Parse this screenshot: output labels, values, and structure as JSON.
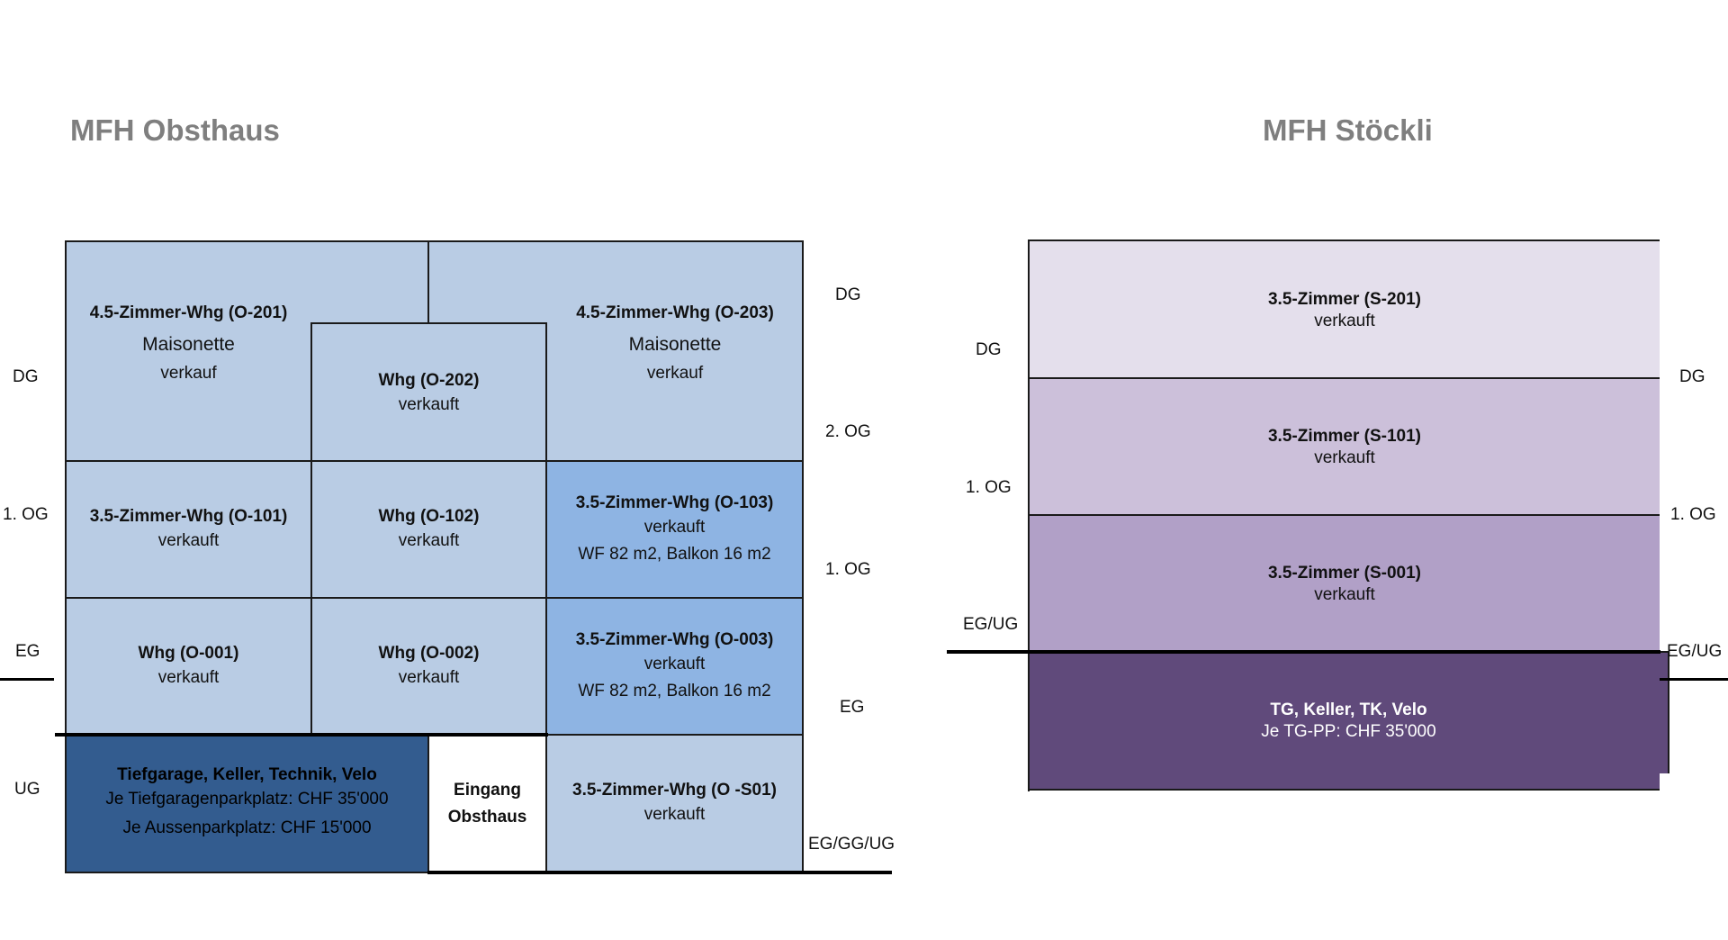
{
  "obsthaus": {
    "title": "MFH Obsthaus",
    "left_floors": {
      "dg": "DG",
      "og1": "1. OG",
      "eg": "EG",
      "ug": "UG"
    },
    "right_floors": {
      "dg": "DG",
      "og2": "2. OG",
      "og1": "1. OG",
      "eg": "EG",
      "egggug": "EG/GG/UG"
    },
    "units": {
      "o201": {
        "name": "4.5-Zimmer-Whg (O-201)",
        "type": "Maisonette",
        "status": "verkauf"
      },
      "o202": {
        "name": "Whg (O-202)",
        "status": "verkauft"
      },
      "o203": {
        "name": "4.5-Zimmer-Whg (O-203)",
        "type": "Maisonette",
        "status": "verkauf"
      },
      "o101": {
        "name": "3.5-Zimmer-Whg (O-101)",
        "status": "verkauft"
      },
      "o102": {
        "name": "Whg (O-102)",
        "status": "verkauft"
      },
      "o103": {
        "name": "3.5-Zimmer-Whg (O-103)",
        "status": "verkauft",
        "area": "WF 82 m2, Balkon 16 m2"
      },
      "o001": {
        "name": "Whg (O-001)",
        "status": "verkauft"
      },
      "o002": {
        "name": "Whg (O-002)",
        "status": "verkauft"
      },
      "o003": {
        "name": "3.5-Zimmer-Whg (O-003)",
        "status": "verkauft",
        "area": "WF 82 m2, Balkon 16 m2"
      },
      "tg": {
        "name": "Tiefgarage, Keller, Technik, Velo",
        "line1": "Je Tiefgaragenparkplatz:  CHF 35'000",
        "line2": "Je Aussenparkplatz: CHF 15'000"
      },
      "eingang": {
        "line1": "Eingang",
        "line2": "Obsthaus"
      },
      "os01": {
        "name": "3.5-Zimmer-Whg (O -S01)",
        "status": "verkauft"
      }
    },
    "colors": {
      "light": "#b9cce4",
      "mid": "#8eb4e3",
      "dark": "#335c8f"
    }
  },
  "stoeckli": {
    "title": "MFH Stöckli",
    "left_floors": {
      "dg": "DG",
      "og1": "1. OG",
      "egug": "EG/UG"
    },
    "right_floors": {
      "dg": "DG",
      "og1": "1. OG",
      "egug": "EG/UG"
    },
    "units": {
      "s201": {
        "name": "3.5-Zimmer (S-201)",
        "status": "verkauft"
      },
      "s101": {
        "name": "3.5-Zimmer (S-101)",
        "status": "verkauft"
      },
      "s001": {
        "name": "3.5-Zimmer (S-001)",
        "status": "verkauft"
      },
      "tg": {
        "name": "TG, Keller, TK, Velo",
        "line1": "Je TG-PP:  CHF 35'000"
      }
    },
    "colors": {
      "s201": "#e4dfec",
      "s101": "#ccc0da",
      "s001": "#b1a0c7",
      "tg": "#604a7b"
    }
  }
}
